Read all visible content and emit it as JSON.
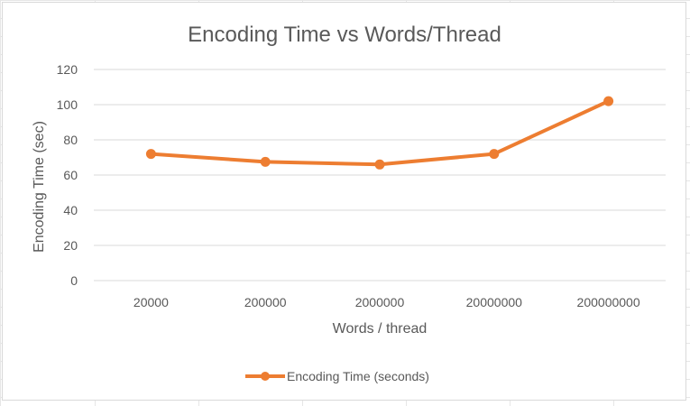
{
  "chart_data": {
    "type": "line",
    "title": "Encoding Time vs Words/Thread",
    "xlabel": "Words / thread",
    "ylabel": "Encoding Time (sec)",
    "categories": [
      "20000",
      "200000",
      "2000000",
      "20000000",
      "200000000"
    ],
    "series": [
      {
        "name": "Encoding Time (seconds)",
        "values": [
          72,
          67.5,
          66,
          72,
          102
        ],
        "color": "#ED7D31"
      }
    ],
    "ylim": [
      0,
      120
    ],
    "yticks": [
      "0",
      "20",
      "40",
      "60",
      "80",
      "100",
      "120"
    ],
    "grid": true,
    "legend_position": "bottom"
  }
}
